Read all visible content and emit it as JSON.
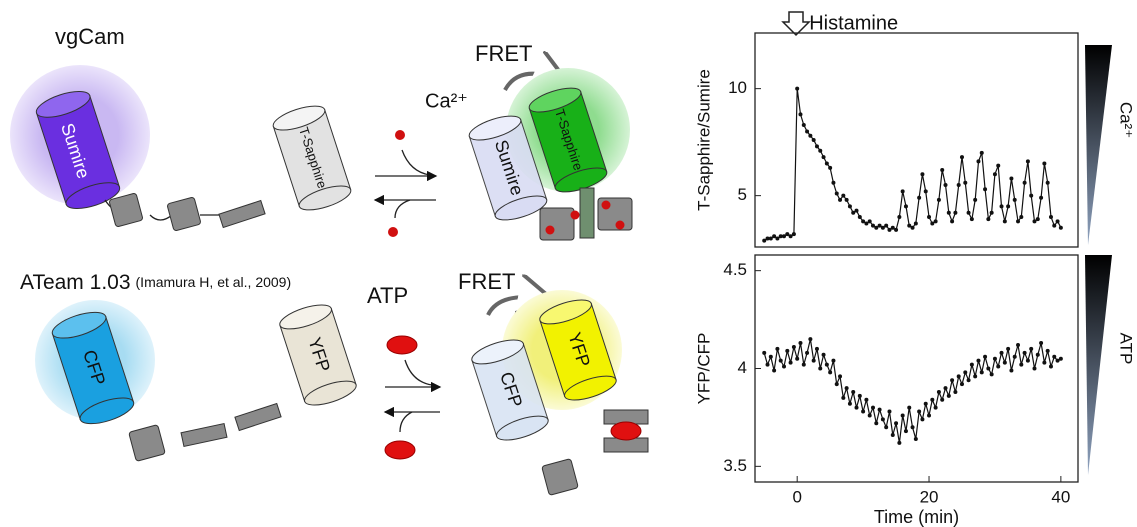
{
  "diagram": {
    "top": {
      "title": "vgCam",
      "donor": "Sumire",
      "acceptor": "T-Sapphire",
      "ligand": "Ca²⁺",
      "fret": "FRET",
      "bound_donor": "Sumire",
      "bound_acceptor": "T-Sapphire"
    },
    "bottom": {
      "title": "ATeam 1.03",
      "citation": "(Imamura H, et al., 2009)",
      "donor": "CFP",
      "acceptor": "YFP",
      "ligand": "ATP",
      "fret": "FRET",
      "bound_donor": "CFP",
      "bound_acceptor": "YFP"
    }
  },
  "chart_data": [
    {
      "type": "line",
      "ylabel": "T-Sapphire/Sumire",
      "annotation": "Histamine",
      "side_label": "Ca²⁺",
      "color": "#111111",
      "x": [
        -5,
        -4.5,
        -4,
        -3.5,
        -3,
        -2.5,
        -2,
        -1.5,
        -1,
        -0.5,
        0,
        0.5,
        1,
        1.5,
        2,
        2.5,
        3,
        3.5,
        4,
        4.5,
        5,
        5.5,
        6,
        6.5,
        7,
        7.5,
        8,
        8.5,
        9,
        9.5,
        10,
        10.5,
        11,
        11.5,
        12,
        12.5,
        13,
        13.5,
        14,
        14.5,
        15,
        15.5,
        16,
        16.5,
        17,
        17.5,
        18,
        18.5,
        19,
        19.5,
        20,
        20.5,
        21,
        21.5,
        22,
        22.5,
        23,
        23.5,
        24,
        24.5,
        25,
        25.5,
        26,
        26.5,
        27,
        27.5,
        28,
        28.5,
        29,
        29.5,
        30,
        30.5,
        31,
        31.5,
        32,
        32.5,
        33,
        33.5,
        34,
        34.5,
        35,
        35.5,
        36,
        36.5,
        37,
        37.5,
        38,
        38.5,
        39,
        39.5,
        40
      ],
      "values": [
        2.9,
        3.0,
        3.0,
        3.1,
        3.0,
        3.1,
        3.1,
        3.2,
        3.1,
        3.2,
        10.0,
        8.8,
        8.3,
        8.0,
        7.8,
        7.6,
        7.3,
        7.1,
        6.8,
        6.5,
        6.3,
        5.6,
        5.1,
        4.8,
        5.0,
        4.8,
        4.5,
        4.2,
        4.3,
        4.0,
        3.8,
        3.7,
        3.8,
        3.6,
        3.5,
        3.6,
        3.5,
        3.6,
        3.4,
        3.5,
        3.4,
        4.0,
        5.2,
        4.5,
        3.6,
        3.5,
        3.7,
        4.9,
        6.0,
        5.2,
        4.0,
        3.7,
        3.8,
        4.8,
        6.2,
        5.5,
        4.2,
        3.8,
        4.2,
        5.5,
        6.8,
        5.6,
        4.2,
        3.9,
        4.8,
        6.6,
        7.0,
        5.3,
        3.9,
        4.2,
        6.0,
        6.4,
        4.5,
        3.8,
        4.5,
        5.8,
        4.8,
        3.8,
        4.0,
        5.6,
        6.6,
        5.0,
        3.8,
        3.9,
        4.9,
        6.5,
        5.6,
        4.0,
        3.6,
        3.8,
        3.5
      ],
      "xlim": [
        -6.4,
        42.6
      ],
      "ylim": [
        2.6,
        12.6
      ],
      "yticks": [
        5,
        10
      ]
    },
    {
      "type": "line",
      "ylabel": "YFP/CFP",
      "xlabel": "Time (min)",
      "side_label": "ATP",
      "color": "#111111",
      "x": [
        -5,
        -4.5,
        -4,
        -3.5,
        -3,
        -2.5,
        -2,
        -1.5,
        -1,
        -0.5,
        0,
        0.5,
        1,
        1.5,
        2,
        2.5,
        3,
        3.5,
        4,
        4.5,
        5,
        5.5,
        6,
        6.5,
        7,
        7.5,
        8,
        8.5,
        9,
        9.5,
        10,
        10.5,
        11,
        11.5,
        12,
        12.5,
        13,
        13.5,
        14,
        14.5,
        15,
        15.5,
        16,
        16.5,
        17,
        17.5,
        18,
        18.5,
        19,
        19.5,
        20,
        20.5,
        21,
        21.5,
        22,
        22.5,
        23,
        23.5,
        24,
        24.5,
        25,
        25.5,
        26,
        26.5,
        27,
        27.5,
        28,
        28.5,
        29,
        29.5,
        30,
        30.5,
        31,
        31.5,
        32,
        32.5,
        33,
        33.5,
        34,
        34.5,
        35,
        35.5,
        36,
        36.5,
        37,
        37.5,
        38,
        38.5,
        39,
        39.5,
        40
      ],
      "values": [
        4.08,
        4.02,
        4.06,
        3.99,
        4.1,
        4.04,
        4.01,
        4.09,
        4.03,
        4.11,
        4.05,
        4.13,
        4.02,
        4.08,
        4.15,
        4.04,
        4.1,
        4.0,
        4.07,
        4.02,
        3.98,
        4.04,
        3.92,
        3.96,
        3.85,
        3.9,
        3.82,
        3.88,
        3.8,
        3.86,
        3.78,
        3.84,
        3.76,
        3.8,
        3.72,
        3.79,
        3.74,
        3.7,
        3.78,
        3.66,
        3.72,
        3.62,
        3.76,
        3.68,
        3.8,
        3.7,
        3.64,
        3.78,
        3.74,
        3.82,
        3.76,
        3.84,
        3.8,
        3.88,
        3.84,
        3.9,
        3.86,
        3.94,
        3.88,
        3.96,
        3.92,
        3.98,
        3.94,
        4.02,
        3.96,
        4.04,
        3.98,
        4.06,
        4.0,
        3.97,
        4.05,
        4.01,
        4.08,
        4.03,
        4.1,
        3.99,
        4.06,
        4.12,
        4.02,
        4.08,
        4.04,
        4.1,
        4.0,
        4.07,
        4.13,
        4.03,
        4.09,
        4.01,
        4.06,
        4.04,
        4.05
      ],
      "xlim": [
        -6.4,
        42.6
      ],
      "ylim": [
        3.42,
        4.58
      ],
      "yticks": [
        3.5,
        4,
        4.5
      ],
      "xticks": [
        0,
        20,
        40
      ]
    }
  ]
}
